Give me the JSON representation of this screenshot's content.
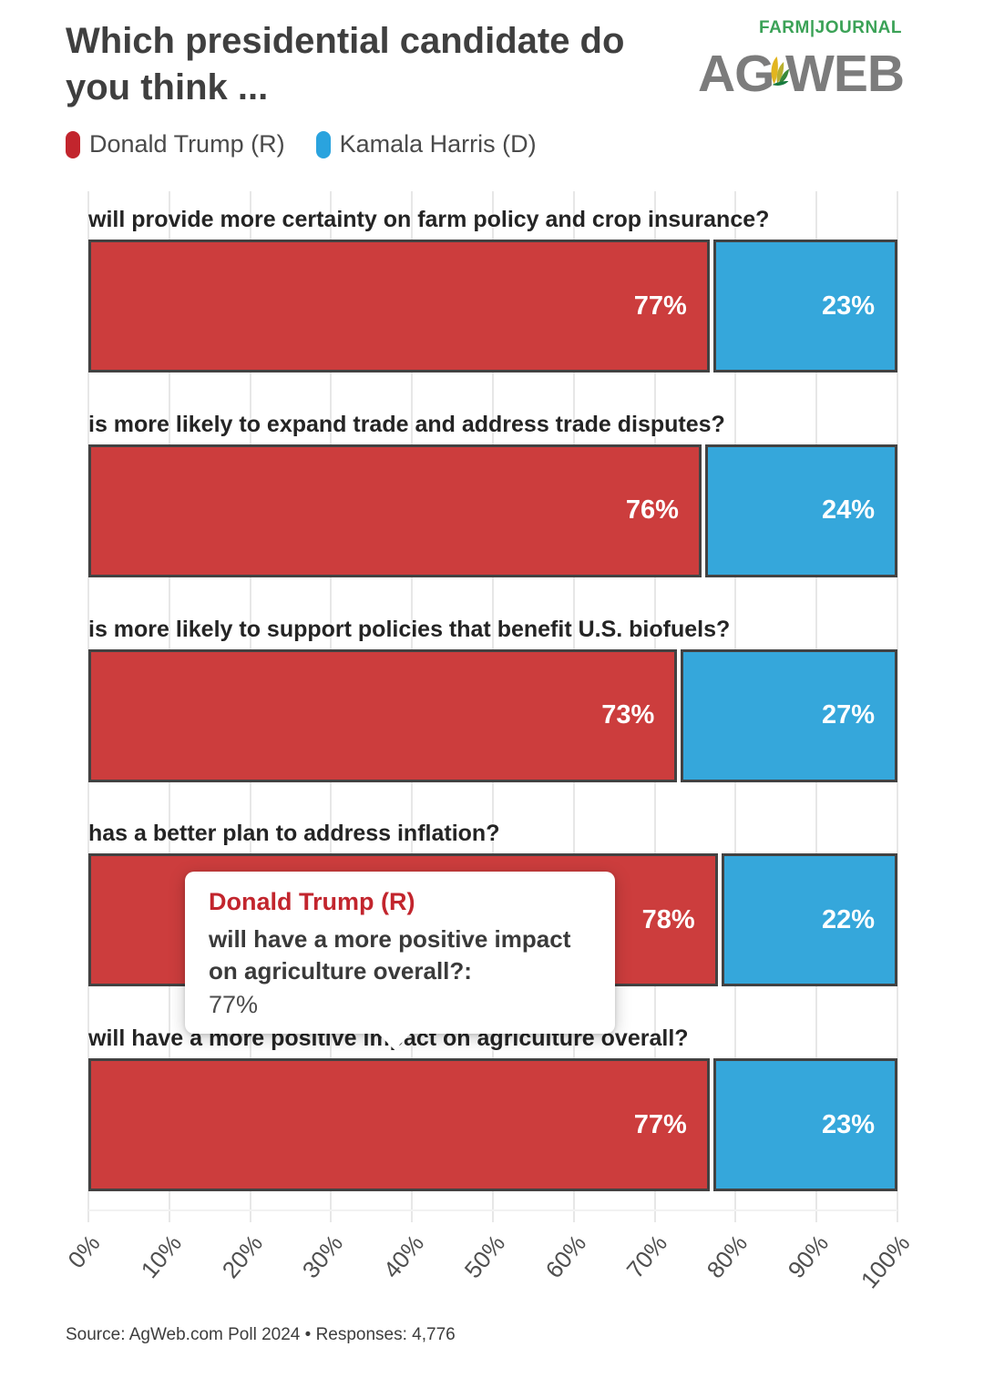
{
  "page": {
    "title_line1": "Which presidential candidate do",
    "title_line2": "you think ...",
    "source": "Source: AgWeb.com Poll 2024 • Responses: 4,776"
  },
  "logo": {
    "farm_journal": "FARM|JOURNAL",
    "ag": "AG",
    "web": "WEB",
    "gray": "#7c7c7c",
    "green": "#3ba257",
    "leaf_yellow": "#e2b51f",
    "leaf_olive": "#b9b02f",
    "leaf_green_light": "#55a33d",
    "leaf_green_dark": "#1e6f33",
    "leaf_base": "#177a3e"
  },
  "legend": [
    {
      "label": "Donald Trump (R)",
      "color": "#c2252d"
    },
    {
      "label": "Kamala Harris (D)",
      "color": "#2aa3de"
    }
  ],
  "tooltip": {
    "title": "Donald Trump (R)",
    "question_line1": "will have a more positive impact",
    "question_line2": "on agriculture overall?:",
    "value": "77%"
  },
  "chart_data": {
    "type": "bar",
    "orientation": "horizontal",
    "stacked": true,
    "grid": true,
    "legend_position": "top",
    "xlim": [
      0,
      100
    ],
    "value_suffix": "%",
    "x_ticks": [
      "0%",
      "10%",
      "20%",
      "30%",
      "40%",
      "50%",
      "60%",
      "70%",
      "80%",
      "90%",
      "100%"
    ],
    "categories": [
      "will provide more certainty on farm policy and crop insurance?",
      "is more likely to expand trade and address trade disputes?",
      "is more likely to support policies that benefit U.S. biofuels?",
      "has a better plan to address inflation?",
      "will have a more positive impact on agriculture overall?"
    ],
    "series": [
      {
        "name": "Donald Trump (R)",
        "color": "#cc3d3d",
        "values": [
          77,
          76,
          73,
          78,
          77
        ]
      },
      {
        "name": "Kamala Harris (D)",
        "color": "#35a7db",
        "values": [
          23,
          24,
          27,
          22,
          23
        ]
      }
    ],
    "bar_value_labels": [
      [
        "77%",
        "23%"
      ],
      [
        "76%",
        "24%"
      ],
      [
        "73%",
        "27%"
      ],
      [
        "78%",
        "22%"
      ],
      [
        "77%",
        "23%"
      ]
    ]
  }
}
